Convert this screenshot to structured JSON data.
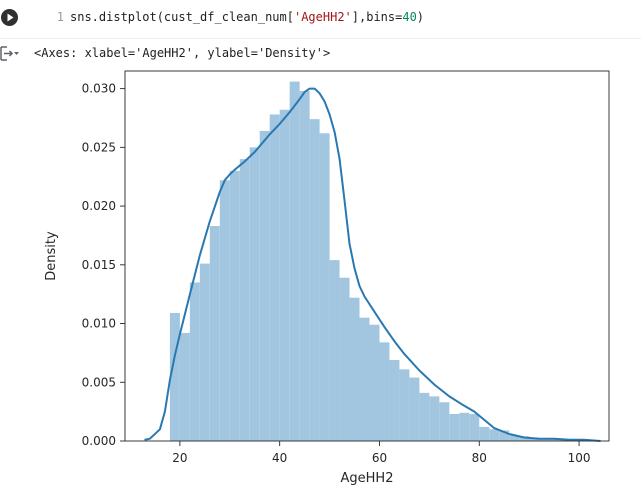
{
  "cell": {
    "line_number": "1",
    "code": {
      "p1": "sns.distplot(cust_df_clean_num[",
      "str": "'AgeHH2'",
      "p2": "],bins=",
      "num": "40",
      "p3": ")"
    },
    "output_repr": "<Axes: xlabel='AgeHH2', ylabel='Density'>"
  },
  "colors": {
    "bar": "#a2c6e0",
    "kde": "#2a78b1"
  },
  "icons": {
    "run": "play-circle-icon",
    "output": "output-collapse-icon"
  },
  "chart_data": {
    "type": "histogram-with-kde",
    "title": "",
    "xlabel": "AgeHH2",
    "ylabel": "Density",
    "xlim": [
      9,
      106
    ],
    "ylim": [
      0,
      0.0315
    ],
    "x_ticks": [
      20,
      40,
      60,
      80,
      100
    ],
    "y_ticks": [
      0.0,
      0.005,
      0.01,
      0.015,
      0.02,
      0.025,
      0.03
    ],
    "x_tick_labels": [
      "20",
      "40",
      "60",
      "80",
      "100"
    ],
    "y_tick_labels": [
      "0.000",
      "0.005",
      "0.010",
      "0.015",
      "0.020",
      "0.025",
      "0.030"
    ],
    "bins": 40,
    "bin_start": 18,
    "bin_width": 2,
    "bar_values": [
      0.0109,
      0.0092,
      0.0135,
      0.0151,
      0.0183,
      0.0222,
      0.023,
      0.024,
      0.025,
      0.0264,
      0.0278,
      0.0282,
      0.0306,
      0.0298,
      0.0274,
      0.0262,
      0.0154,
      0.0139,
      0.0122,
      0.0105,
      0.0099,
      0.0084,
      0.0069,
      0.0061,
      0.0054,
      0.0041,
      0.0038,
      0.0033,
      0.0023,
      0.0024,
      0.0023,
      0.0012,
      0.001,
      0.0009,
      0.0005,
      0.0004,
      0.0003,
      0.0002,
      0.0002,
      0.0001
    ],
    "kde": {
      "x": [
        12.9,
        14,
        16,
        17,
        18,
        19,
        20,
        22,
        24,
        26,
        28,
        29,
        30,
        31,
        33,
        35,
        38,
        40,
        42,
        44,
        45,
        46,
        47,
        48,
        49,
        50,
        51,
        52,
        53,
        54,
        55,
        56,
        57,
        59,
        61,
        63,
        65,
        68,
        71,
        74,
        77,
        79,
        81,
        83,
        86,
        89,
        92,
        95,
        98,
        101,
        104.3
      ],
      "y": [
        0.0001,
        0.0002,
        0.001,
        0.0025,
        0.0052,
        0.0073,
        0.0091,
        0.0125,
        0.0158,
        0.0187,
        0.0212,
        0.0222,
        0.0227,
        0.0231,
        0.0238,
        0.0246,
        0.0261,
        0.027,
        0.028,
        0.0291,
        0.0297,
        0.03,
        0.03,
        0.0296,
        0.0289,
        0.0278,
        0.0263,
        0.024,
        0.0205,
        0.0168,
        0.0147,
        0.0132,
        0.0123,
        0.011,
        0.0097,
        0.0085,
        0.0074,
        0.006,
        0.0048,
        0.0038,
        0.003,
        0.0025,
        0.0018,
        0.0011,
        0.0006,
        0.0003,
        0.0002,
        0.0002,
        0.0001,
        0.0001,
        0.0
      ]
    },
    "grid": false,
    "legend": "none"
  }
}
